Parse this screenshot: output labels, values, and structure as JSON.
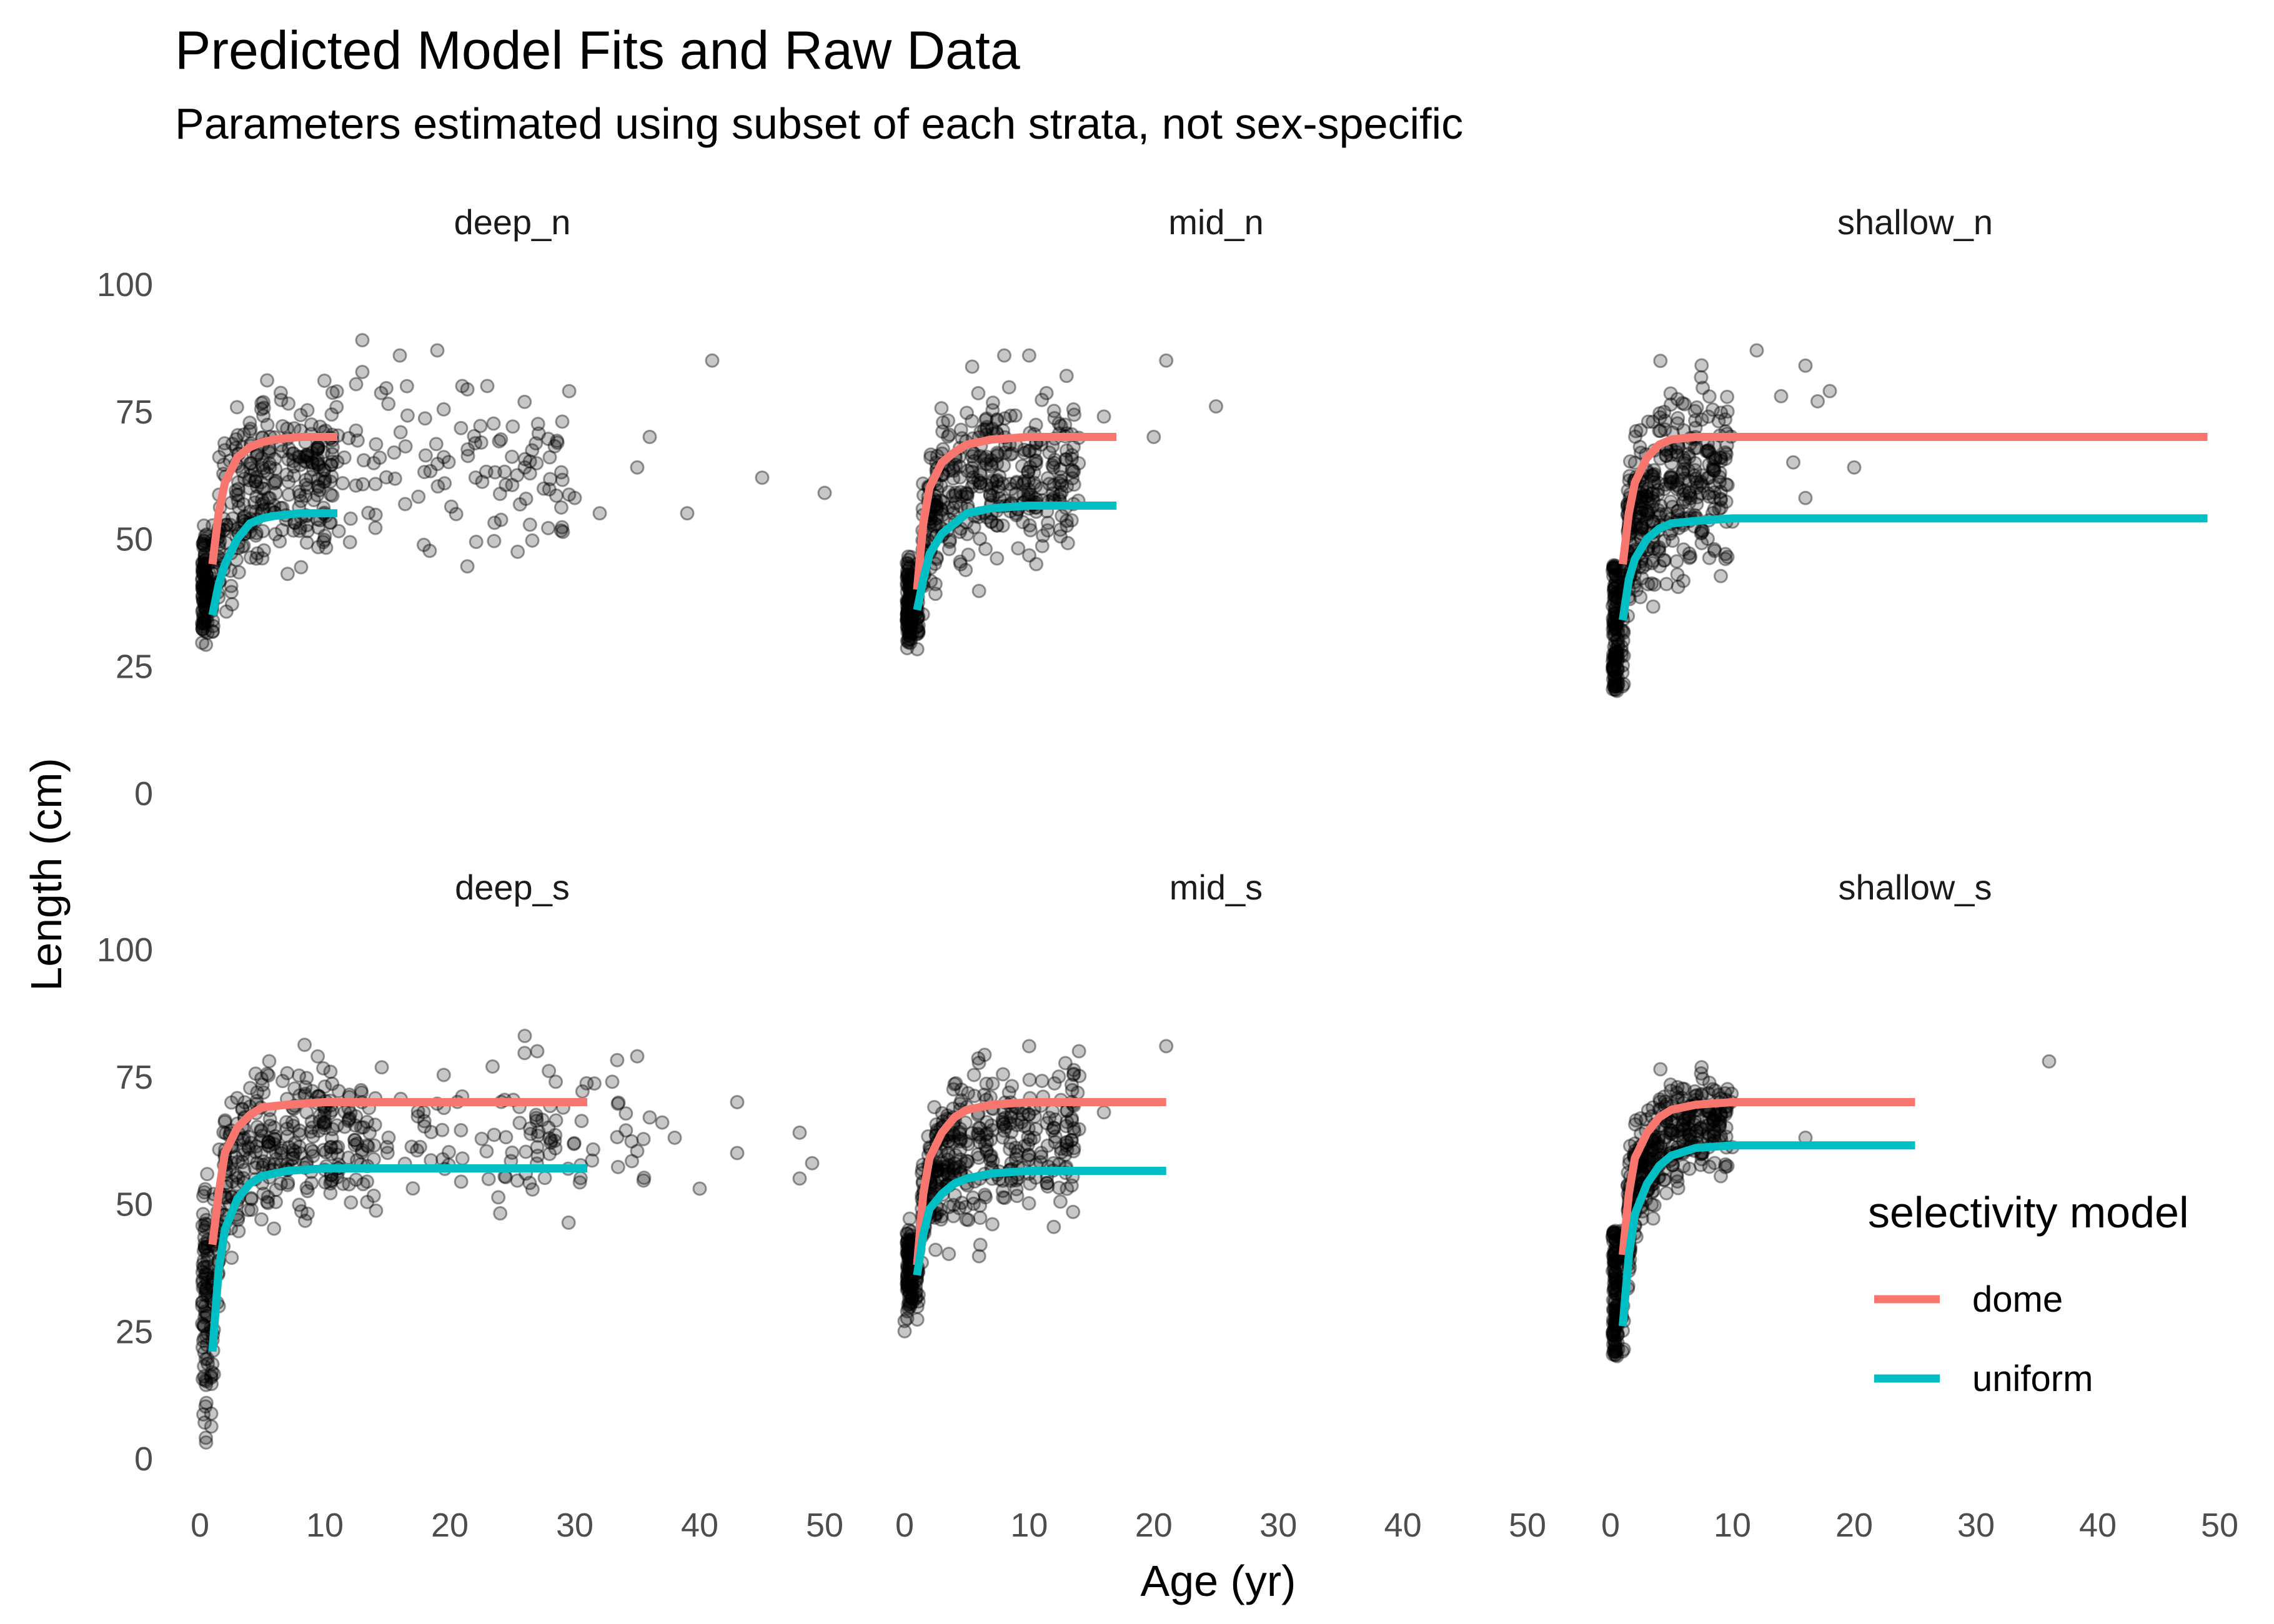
{
  "chart_data": {
    "type": "scatter",
    "title": "Predicted Model Fits and Raw Data",
    "subtitle": "Parameters estimated using subset of each strata, not sex-specific",
    "xlabel": "Age (yr)",
    "ylabel": "Length (cm)",
    "xlim": [
      0,
      50
    ],
    "ylim": [
      0,
      100
    ],
    "x_ticks": [
      0,
      10,
      20,
      30,
      40,
      50
    ],
    "y_ticks": [
      0,
      25,
      50,
      75,
      100
    ],
    "grid": false,
    "legend": {
      "title": "selectivity model",
      "position": "right",
      "entries": [
        {
          "label": "dome",
          "color": "#F8766D"
        },
        {
          "label": "uniform",
          "color": "#00BFC4"
        }
      ]
    },
    "panels": [
      {
        "label": "deep_n",
        "fits": {
          "dome": {
            "x": [
              1,
              1.5,
              2,
              3,
              4,
              5,
              6,
              8,
              11
            ],
            "y": [
              45,
              55,
              61,
              66,
              68,
              69,
              69.5,
              70,
              70
            ]
          },
          "uniform": {
            "x": [
              1,
              1.5,
              2,
              3,
              4,
              5,
              6,
              8,
              11
            ],
            "y": [
              35,
              41,
              45,
              50,
              53,
              54,
              54.5,
              55,
              55
            ]
          }
        },
        "outliers": [
          [
            13,
            89
          ],
          [
            16,
            86
          ],
          [
            19,
            87
          ],
          [
            21,
            80
          ],
          [
            23,
            80
          ],
          [
            26,
            64
          ],
          [
            28,
            66
          ],
          [
            29,
            73
          ],
          [
            30,
            58
          ],
          [
            32,
            55
          ],
          [
            35,
            64
          ],
          [
            36,
            70
          ],
          [
            39,
            55
          ],
          [
            41,
            85
          ],
          [
            45,
            62
          ],
          [
            50,
            59
          ]
        ]
      },
      {
        "label": "mid_n",
        "fits": {
          "dome": {
            "x": [
              1,
              1.5,
              2,
              3,
              4,
              5,
              7,
              10,
              17
            ],
            "y": [
              40,
              53,
              60,
              65,
              67,
              68.5,
              69.5,
              70,
              70
            ]
          },
          "uniform": {
            "x": [
              1,
              1.5,
              2,
              3,
              4,
              5,
              7,
              10,
              17
            ],
            "y": [
              36,
              42,
              47,
              51,
              53,
              55,
              56,
              56.5,
              56.5
            ]
          }
        },
        "outliers": [
          [
            8,
            86
          ],
          [
            10,
            86
          ],
          [
            13,
            82
          ],
          [
            16,
            74
          ],
          [
            20,
            70
          ],
          [
            21,
            85
          ],
          [
            25,
            76
          ]
        ]
      },
      {
        "label": "shallow_n",
        "fits": {
          "dome": {
            "x": [
              1,
              1.5,
              2,
              3,
              4,
              5,
              7,
              10,
              20,
              49
            ],
            "y": [
              45,
              55,
              61,
              66,
              68.5,
              69.5,
              70,
              70,
              70,
              70
            ]
          },
          "uniform": {
            "x": [
              1,
              1.5,
              2,
              3,
              4,
              5,
              7,
              10,
              20,
              49
            ],
            "y": [
              34,
              42,
              46,
              50,
              52,
              53,
              53.5,
              54,
              54,
              54
            ]
          }
        },
        "outliers": [
          [
            12,
            87
          ],
          [
            14,
            78
          ],
          [
            15,
            65
          ],
          [
            16,
            84
          ],
          [
            17,
            77
          ],
          [
            18,
            79
          ],
          [
            20,
            64
          ],
          [
            16,
            58
          ]
        ]
      },
      {
        "label": "deep_s",
        "fits": {
          "dome": {
            "x": [
              1,
              1.5,
              2,
              3,
              4,
              5,
              7,
              10,
              20,
              31
            ],
            "y": [
              42,
              52,
              60,
              65,
              67.5,
              69,
              69.5,
              70,
              70,
              70
            ]
          },
          "uniform": {
            "x": [
              1,
              1.5,
              2,
              3,
              4,
              5,
              7,
              10,
              20,
              31
            ],
            "y": [
              21,
              37,
              45,
              51,
              54,
              55.5,
              56.5,
              57,
              57,
              57
            ]
          }
        },
        "outliers": [
          [
            0.5,
            28
          ],
          [
            0.5,
            24
          ],
          [
            26,
            83
          ],
          [
            27,
            80
          ],
          [
            33,
            74
          ],
          [
            35,
            79
          ],
          [
            36,
            67
          ],
          [
            37,
            66
          ],
          [
            38,
            63
          ],
          [
            40,
            53
          ],
          [
            43,
            60
          ],
          [
            43,
            70
          ],
          [
            48,
            64
          ],
          [
            48,
            55
          ],
          [
            49,
            58
          ]
        ]
      },
      {
        "label": "mid_s",
        "fits": {
          "dome": {
            "x": [
              1,
              1.5,
              2,
              3,
              4,
              5,
              7,
              10,
              21
            ],
            "y": [
              38,
              52,
              59,
              64,
              67,
              68.5,
              69.5,
              70,
              70
            ]
          },
          "uniform": {
            "x": [
              1,
              1.5,
              2,
              3,
              4,
              5,
              7,
              10,
              21
            ],
            "y": [
              36,
              44,
              49,
              52,
              54,
              55,
              56,
              56.5,
              56.5
            ]
          }
        },
        "outliers": [
          [
            0,
            27
          ],
          [
            0,
            25
          ],
          [
            10,
            81
          ],
          [
            14,
            80
          ],
          [
            16,
            68
          ],
          [
            21,
            81
          ]
        ]
      },
      {
        "label": "shallow_s",
        "fits": {
          "dome": {
            "x": [
              1,
              1.5,
              2,
              3,
              4,
              5,
              7,
              10,
              25
            ],
            "y": [
              40,
              52,
              59,
              64,
              67,
              68.5,
              69.5,
              70,
              70
            ]
          },
          "uniform": {
            "x": [
              1,
              1.5,
              2,
              3,
              4,
              5,
              7,
              10,
              25
            ],
            "y": [
              26,
              40,
              48,
              54,
              57.5,
              59.5,
              61,
              61.5,
              61.5
            ]
          }
        },
        "outliers": [
          [
            36,
            78
          ],
          [
            16,
            63
          ],
          [
            9,
            69
          ]
        ]
      }
    ]
  }
}
